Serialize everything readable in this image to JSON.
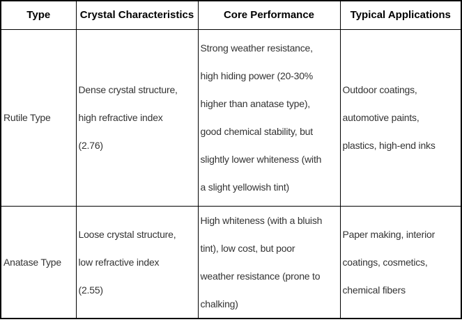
{
  "table": {
    "title_semantic": "titanium-dioxide-type-comparison",
    "colors": {
      "border": "#000000",
      "header_text": "#000000",
      "body_text": "#333333",
      "background": "#ffffff"
    },
    "headers": [
      "Type",
      "Crystal Characteristics",
      "Core Performance",
      "Typical Applications"
    ],
    "rows": [
      {
        "type": "Rutile Type",
        "crystal": "Dense crystal structure,\nhigh refractive index\n(2.76)",
        "performance": "Strong weather resistance,\nhigh hiding power (20-30%\nhigher than anatase type),\ngood chemical stability, but\nslightly lower whiteness (with\na slight yellowish tint)",
        "applications": "Outdoor coatings,\nautomotive paints,\nplastics, high-end inks"
      },
      {
        "type": "Anatase Type",
        "crystal": "Loose crystal structure,\nlow refractive index\n(2.55)",
        "performance": "High whiteness (with a bluish\ntint), low cost, but poor\nweather resistance (prone to\nchalking)",
        "applications": "Paper making, interior\ncoatings, cosmetics,\nchemical fibers"
      }
    ]
  }
}
